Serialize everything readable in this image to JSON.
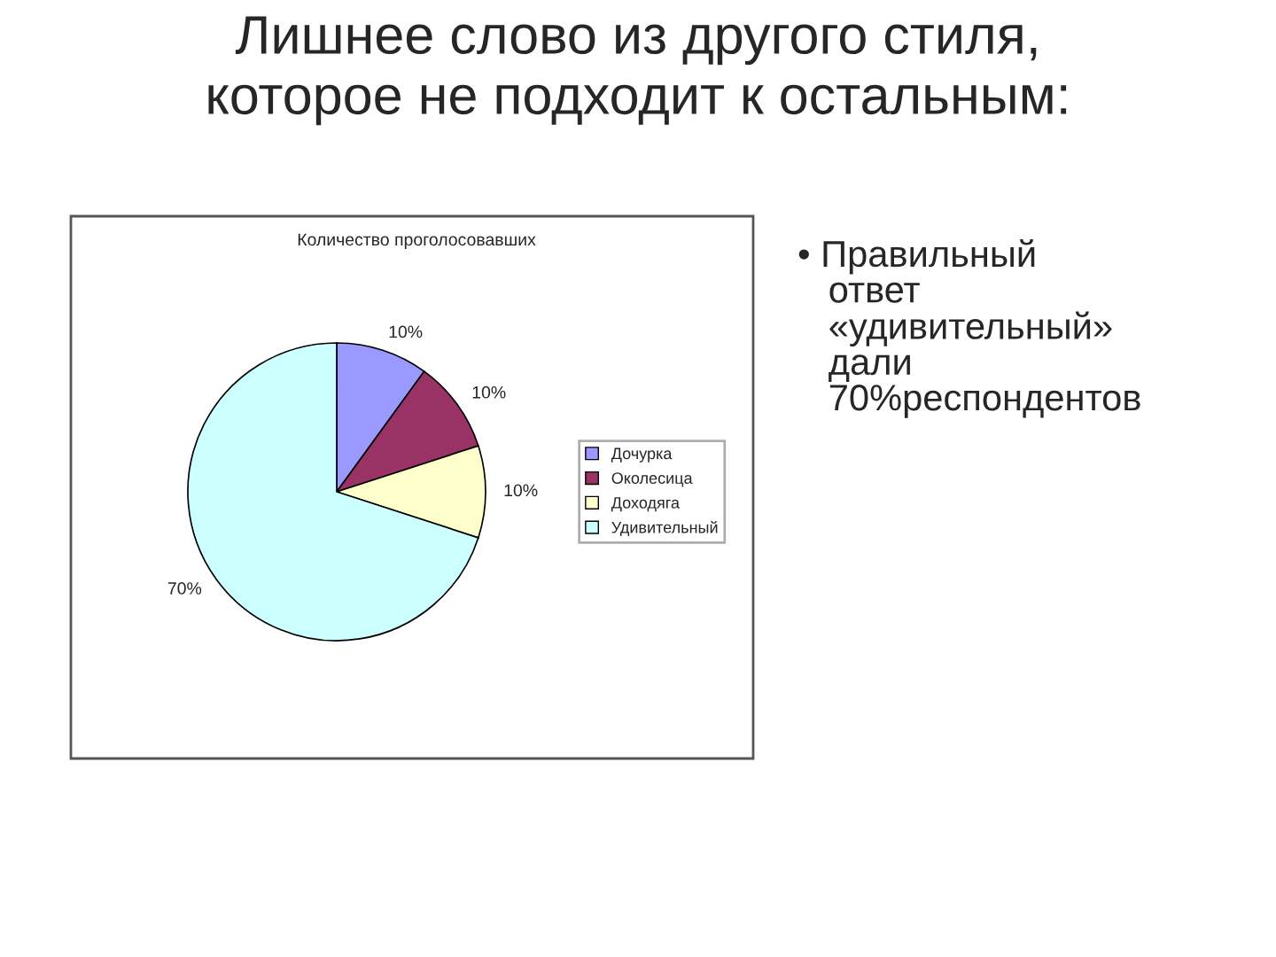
{
  "chart_data": {
    "type": "pie",
    "title": "Лишнее слово из другого стиля,\nкоторое не подходит к остальным:",
    "subtitle": "Количество проголосовавших",
    "categories": [
      "Дочурка",
      "Околесица",
      "Доходяга",
      "Удивительный"
    ],
    "values": [
      10,
      10,
      10,
      70
    ],
    "value_labels": [
      "10%",
      "10%",
      "10%",
      "70%"
    ],
    "colors": [
      "#9999ff",
      "#993366",
      "#ffffcc",
      "#ccffff"
    ],
    "legend": "right",
    "annotations": [
      "• Правильный\n   ответ\n   «удивительный»\n   дали\n   70%респондентов"
    ]
  }
}
